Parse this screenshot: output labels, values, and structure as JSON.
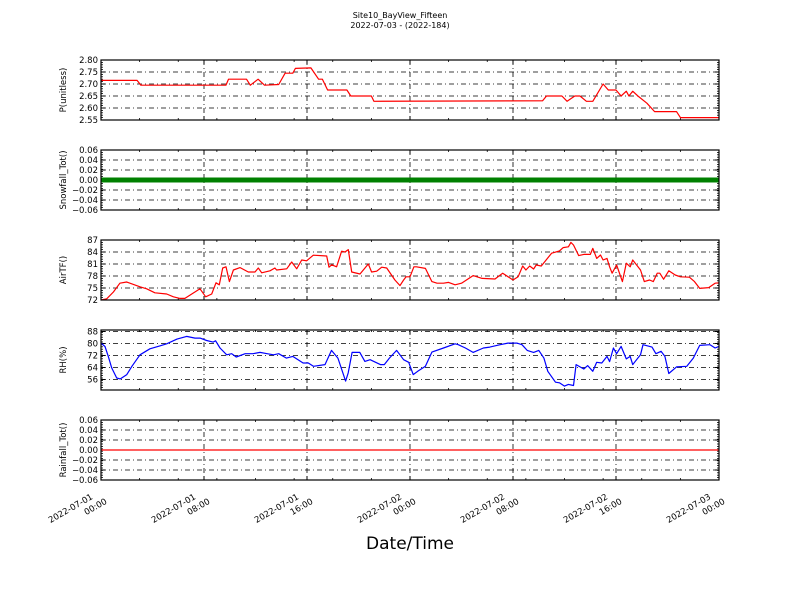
{
  "chart_data": {
    "type": "line",
    "title": "Site10_BayView_Fifteen",
    "subtitle": "2022-07-03 - (2022-184)",
    "xlabel": "Date/Time",
    "x_units": "hours since 2022-07-01 00:00",
    "xlim": [
      0,
      48
    ],
    "x_major_step_hours": 8,
    "x_tick_labels": [
      [
        "2022-07-01",
        "00:00"
      ],
      [
        "2022-07-01",
        "08:00"
      ],
      [
        "2022-07-01",
        "16:00"
      ],
      [
        "2022-07-02",
        "00:00"
      ],
      [
        "2022-07-02",
        "08:00"
      ],
      [
        "2022-07-02",
        "16:00"
      ],
      [
        "2022-07-03",
        "00:00"
      ]
    ],
    "grid": true,
    "panels": [
      {
        "ylabel": "P(unitless)",
        "ylim": [
          2.55,
          2.8
        ],
        "yticks": [
          "2.55",
          "2.60",
          "2.65",
          "2.70",
          "2.75",
          "2.80"
        ],
        "color": "#ff0000",
        "style": "line",
        "points": [
          [
            0,
            2.715
          ],
          [
            2.8,
            2.715
          ],
          [
            3.1,
            2.695
          ],
          [
            9.7,
            2.695
          ],
          [
            9.9,
            2.72
          ],
          [
            11.3,
            2.72
          ],
          [
            11.6,
            2.695
          ],
          [
            12.2,
            2.72
          ],
          [
            12.7,
            2.695
          ],
          [
            13.8,
            2.698
          ],
          [
            14.3,
            2.745
          ],
          [
            14.9,
            2.745
          ],
          [
            15.1,
            2.765
          ],
          [
            16.3,
            2.767
          ],
          [
            16.9,
            2.72
          ],
          [
            17.2,
            2.72
          ],
          [
            17.6,
            2.675
          ],
          [
            19.1,
            2.675
          ],
          [
            19.4,
            2.65
          ],
          [
            21.0,
            2.65
          ],
          [
            21.2,
            2.628
          ],
          [
            34.3,
            2.63
          ],
          [
            34.6,
            2.65
          ],
          [
            35.8,
            2.65
          ],
          [
            36.2,
            2.628
          ],
          [
            36.8,
            2.65
          ],
          [
            37.2,
            2.65
          ],
          [
            37.7,
            2.628
          ],
          [
            38.2,
            2.628
          ],
          [
            39.0,
            2.7
          ],
          [
            39.4,
            2.675
          ],
          [
            40.0,
            2.675
          ],
          [
            40.4,
            2.65
          ],
          [
            40.8,
            2.67
          ],
          [
            41.0,
            2.65
          ],
          [
            41.3,
            2.67
          ],
          [
            41.7,
            2.65
          ],
          [
            42.4,
            2.62
          ],
          [
            43.0,
            2.585
          ],
          [
            44.7,
            2.585
          ],
          [
            45.0,
            2.56
          ],
          [
            48,
            2.56
          ]
        ]
      },
      {
        "ylabel": "Snowfall_Tot()",
        "ylim": [
          -0.06,
          0.06
        ],
        "yticks": [
          "−0.06",
          "−0.04",
          "−0.02",
          "0.00",
          "0.02",
          "0.04",
          "0.06"
        ],
        "color": "#008000",
        "style": "markers",
        "points": [
          [
            0,
            0
          ],
          [
            48,
            0
          ]
        ]
      },
      {
        "ylabel": "AirTF()",
        "ylim": [
          72,
          87
        ],
        "yticks": [
          "72",
          "75",
          "78",
          "81",
          "84",
          "87"
        ],
        "color": "#ff0000",
        "style": "line",
        "points": [
          [
            0,
            72
          ],
          [
            0.44,
            72.3
          ],
          [
            0.96,
            74
          ],
          [
            1.47,
            76.2
          ],
          [
            1.99,
            76.5
          ],
          [
            3.03,
            75.3
          ],
          [
            3.55,
            74.8
          ],
          [
            4.19,
            73.8
          ],
          [
            5.1,
            73.5
          ],
          [
            5.62,
            72.8
          ],
          [
            6.13,
            72.4
          ],
          [
            6.52,
            72.4
          ],
          [
            7.69,
            74.8
          ],
          [
            8.13,
            72.8
          ],
          [
            8.6,
            73.5
          ],
          [
            8.93,
            76.3
          ],
          [
            9.19,
            75.8
          ],
          [
            9.45,
            80
          ],
          [
            9.71,
            80.3
          ],
          [
            9.97,
            76.6
          ],
          [
            10.28,
            79.5
          ],
          [
            10.8,
            80.1
          ],
          [
            11.44,
            79
          ],
          [
            11.96,
            79
          ],
          [
            12.22,
            80
          ],
          [
            12.48,
            78.8
          ],
          [
            13.13,
            79.3
          ],
          [
            13.51,
            80
          ],
          [
            13.64,
            79.5
          ],
          [
            14.42,
            79.8
          ],
          [
            14.81,
            81.5
          ],
          [
            15.2,
            79.8
          ],
          [
            15.59,
            82
          ],
          [
            15.97,
            81.8
          ],
          [
            16.49,
            83.2
          ],
          [
            17.53,
            83
          ],
          [
            17.71,
            80.2
          ],
          [
            17.92,
            80.8
          ],
          [
            18.3,
            80.3
          ],
          [
            18.69,
            84.2
          ],
          [
            18.95,
            84
          ],
          [
            19.21,
            84.6
          ],
          [
            19.47,
            79
          ],
          [
            20.12,
            78.5
          ],
          [
            20.76,
            81
          ],
          [
            21.02,
            79
          ],
          [
            21.41,
            79.2
          ],
          [
            21.8,
            80.2
          ],
          [
            22.19,
            80
          ],
          [
            22.83,
            77
          ],
          [
            23.22,
            75.6
          ],
          [
            23.5,
            77
          ],
          [
            23.7,
            77.8
          ],
          [
            24.0,
            77.8
          ],
          [
            24.3,
            80.3
          ],
          [
            24.5,
            80.3
          ],
          [
            25.2,
            79.9
          ],
          [
            25.7,
            76.6
          ],
          [
            26.1,
            76.2
          ],
          [
            26.6,
            76.2
          ],
          [
            27,
            76.4
          ],
          [
            27.5,
            75.8
          ],
          [
            28,
            76.2
          ],
          [
            28.9,
            78.1
          ],
          [
            29.6,
            77.4
          ],
          [
            30.6,
            77.25
          ],
          [
            31.2,
            78.7
          ],
          [
            32.0,
            77
          ],
          [
            32.4,
            77.8
          ],
          [
            32.75,
            80.5
          ],
          [
            33,
            79.5
          ],
          [
            33.3,
            80.5
          ],
          [
            33.6,
            79.75
          ],
          [
            33.8,
            80.75
          ],
          [
            34.2,
            80.5
          ],
          [
            35,
            83.7
          ],
          [
            35.6,
            84.25
          ],
          [
            35.9,
            85.1
          ],
          [
            36.3,
            85.3
          ],
          [
            36.5,
            86.4
          ],
          [
            36.7,
            85.75
          ],
          [
            37.1,
            83.1
          ],
          [
            37.5,
            83.4
          ],
          [
            38,
            83.4
          ],
          [
            38.2,
            84.9
          ],
          [
            38.5,
            82.4
          ],
          [
            38.8,
            83.25
          ],
          [
            39,
            82
          ],
          [
            39.3,
            82.4
          ],
          [
            39.5,
            80.3
          ],
          [
            39.7,
            78.7
          ],
          [
            40.05,
            80.75
          ],
          [
            40.5,
            76.6
          ],
          [
            40.8,
            81.2
          ],
          [
            41.1,
            80.3
          ],
          [
            41.3,
            82
          ],
          [
            41.9,
            79.5
          ],
          [
            42.2,
            76.6
          ],
          [
            42.6,
            77
          ],
          [
            42.9,
            76.6
          ],
          [
            43.2,
            78.7
          ],
          [
            43.4,
            78.7
          ],
          [
            43.7,
            77.2
          ],
          [
            44.1,
            79.3
          ],
          [
            44.6,
            78.25
          ],
          [
            45,
            77.8
          ],
          [
            45.7,
            77.7
          ],
          [
            46.1,
            76.6
          ],
          [
            46.5,
            74.9
          ],
          [
            47.2,
            75.1
          ],
          [
            47.7,
            76.2
          ],
          [
            48,
            76.3
          ]
        ]
      },
      {
        "ylabel": "RH(%)",
        "ylim": [
          49,
          89
        ],
        "yticks": [
          "56",
          "64",
          "72",
          "80",
          "88"
        ],
        "color": "#0000ff",
        "style": "line",
        "points": [
          [
            0,
            80.3
          ],
          [
            0.31,
            78
          ],
          [
            0.57,
            71.4
          ],
          [
            0.83,
            63.7
          ],
          [
            1.22,
            57
          ],
          [
            1.5,
            56.4
          ],
          [
            2.0,
            59.3
          ],
          [
            2.4,
            64.8
          ],
          [
            3.03,
            72.5
          ],
          [
            3.8,
            76.5
          ],
          [
            4.6,
            78.5
          ],
          [
            5.1,
            79.8
          ],
          [
            5.9,
            82.9
          ],
          [
            6.65,
            84.7
          ],
          [
            7.3,
            83.6
          ],
          [
            7.7,
            83.6
          ],
          [
            8.2,
            82
          ],
          [
            8.7,
            80.9
          ],
          [
            8.9,
            81.8
          ],
          [
            9.24,
            77
          ],
          [
            9.76,
            72.5
          ],
          [
            10.15,
            73.2
          ],
          [
            10.5,
            71
          ],
          [
            11.2,
            73.2
          ],
          [
            11.8,
            73.2
          ],
          [
            12.35,
            74.1
          ],
          [
            12.9,
            73.2
          ],
          [
            13.4,
            72.5
          ],
          [
            13.8,
            73.2
          ],
          [
            14.4,
            70.3
          ],
          [
            14.9,
            71.4
          ],
          [
            15.7,
            67
          ],
          [
            16.1,
            67
          ],
          [
            16.5,
            64.8
          ],
          [
            17.4,
            65.9
          ],
          [
            17.9,
            75.4
          ],
          [
            18.4,
            70.3
          ],
          [
            19,
            54.9
          ],
          [
            19.2,
            60.4
          ],
          [
            19.5,
            74.1
          ],
          [
            20.1,
            74.1
          ],
          [
            20.5,
            68.1
          ],
          [
            20.9,
            69.2
          ],
          [
            21.7,
            65.9
          ],
          [
            22.0,
            65.9
          ],
          [
            22.4,
            70.3
          ],
          [
            22.96,
            75.4
          ],
          [
            23.5,
            69.2
          ],
          [
            23.9,
            67.5
          ],
          [
            24.25,
            59.3
          ],
          [
            24.6,
            61.5
          ],
          [
            25.2,
            64.8
          ],
          [
            25.7,
            74.3
          ],
          [
            26.6,
            77
          ],
          [
            27.5,
            79.8
          ],
          [
            27.75,
            79.2
          ],
          [
            28.3,
            77
          ],
          [
            28.9,
            74.1
          ],
          [
            29.7,
            77
          ],
          [
            30.2,
            77.6
          ],
          [
            31,
            79.2
          ],
          [
            31.6,
            80.3
          ],
          [
            32.3,
            80.3
          ],
          [
            32.7,
            79.2
          ],
          [
            33.1,
            75.4
          ],
          [
            33.6,
            74.1
          ],
          [
            34,
            75.4
          ],
          [
            34.4,
            70.3
          ],
          [
            34.7,
            61.5
          ],
          [
            35.3,
            54.2
          ],
          [
            35.6,
            53.8
          ],
          [
            36,
            51.6
          ],
          [
            36.3,
            52.7
          ],
          [
            36.7,
            52
          ],
          [
            36.9,
            65.9
          ],
          [
            37.5,
            63
          ],
          [
            37.8,
            65.3
          ],
          [
            38.2,
            61.5
          ],
          [
            38.5,
            67.5
          ],
          [
            38.9,
            67
          ],
          [
            39.3,
            71.4
          ],
          [
            39.5,
            67.9
          ],
          [
            39.8,
            77
          ],
          [
            40.05,
            73.2
          ],
          [
            40.4,
            78.1
          ],
          [
            40.8,
            69.7
          ],
          [
            41.1,
            71.4
          ],
          [
            41.3,
            65.9
          ],
          [
            41.9,
            72.5
          ],
          [
            42.1,
            79.2
          ],
          [
            42.8,
            77.6
          ],
          [
            43.1,
            73.2
          ],
          [
            43.5,
            74.8
          ],
          [
            43.8,
            71.4
          ],
          [
            44.1,
            60
          ],
          [
            44.7,
            64.4
          ],
          [
            45.5,
            64.8
          ],
          [
            46,
            70.3
          ],
          [
            46.5,
            78.7
          ],
          [
            47.3,
            79.2
          ],
          [
            47.7,
            77
          ],
          [
            48,
            78.1
          ]
        ]
      },
      {
        "ylabel": "Rainfall_Tot()",
        "ylim": [
          -0.06,
          0.06
        ],
        "yticks": [
          "−0.06",
          "−0.04",
          "−0.02",
          "0.00",
          "0.02",
          "0.04",
          "0.06"
        ],
        "color": "#ff0000",
        "style": "line",
        "points": [
          [
            0,
            0
          ],
          [
            48,
            0
          ]
        ]
      }
    ]
  }
}
